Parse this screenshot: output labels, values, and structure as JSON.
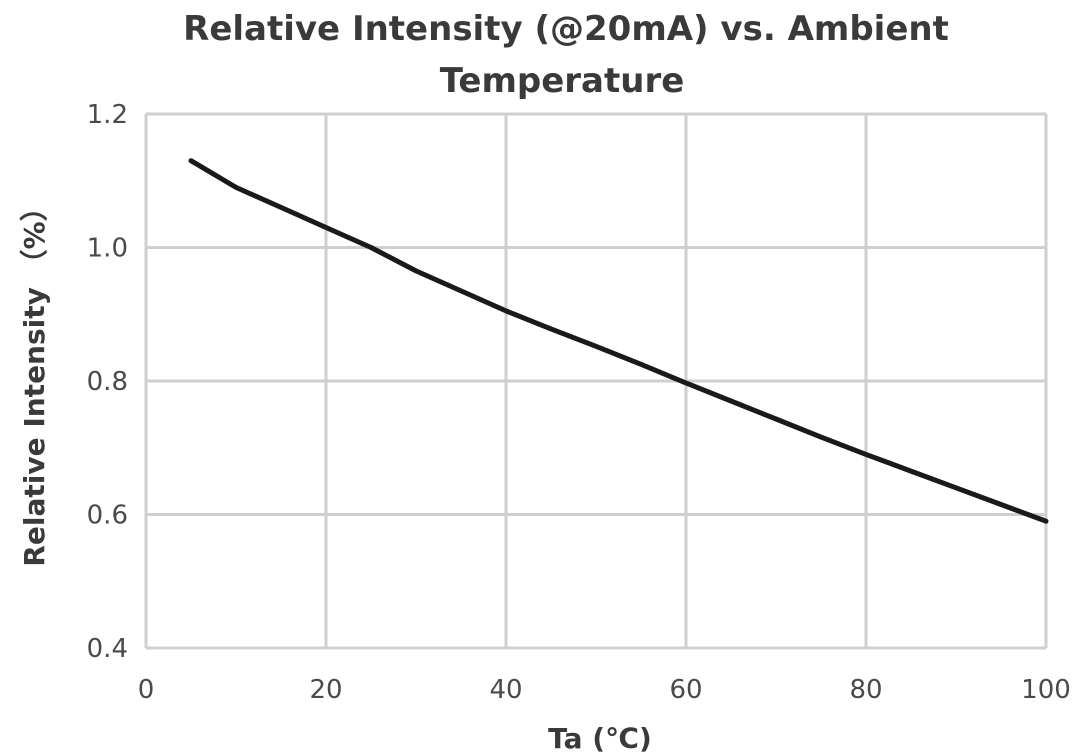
{
  "chart_data": {
    "type": "line",
    "title_lines": [
      "Relative Intensity (@20mA) vs. Ambient",
      "Temperature"
    ],
    "xlabel": "Ta (℃)",
    "ylabel": "Relative Intensity （%）",
    "xlim": [
      0,
      100
    ],
    "ylim": [
      0.4,
      1.2
    ],
    "x_ticks": [
      0,
      20,
      40,
      60,
      80,
      100
    ],
    "x_tick_labels": [
      "0",
      "20",
      "40",
      "60",
      "80",
      "100"
    ],
    "y_ticks": [
      0.4,
      0.6,
      0.8,
      1.0,
      1.2
    ],
    "y_tick_labels": [
      "0.4",
      "0.6",
      "0.8",
      "1.0",
      "1.2"
    ],
    "grid": true,
    "series": [
      {
        "color": "#1a1a1a",
        "x": [
          5,
          10,
          15,
          20,
          25,
          30,
          35,
          40,
          45,
          50,
          55,
          60,
          65,
          70,
          75,
          80,
          85,
          90,
          95,
          100
        ],
        "y": [
          1.13,
          1.09,
          1.06,
          1.03,
          1.0,
          0.965,
          0.935,
          0.905,
          0.878,
          0.852,
          0.825,
          0.797,
          0.77,
          0.743,
          0.716,
          0.69,
          0.665,
          0.64,
          0.615,
          0.59
        ]
      }
    ]
  }
}
